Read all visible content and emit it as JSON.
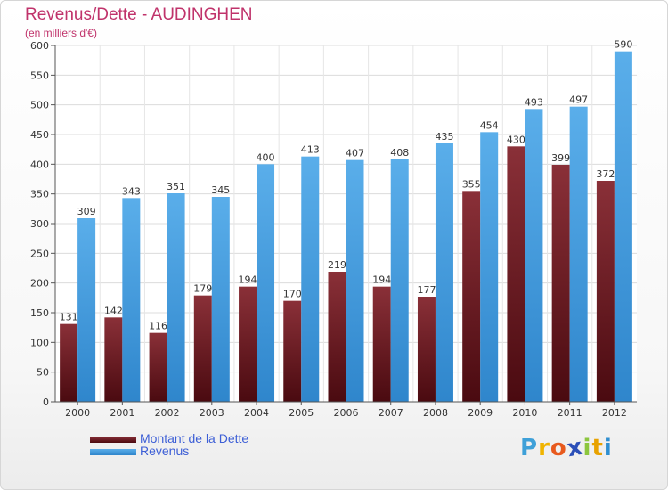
{
  "header": {
    "title": "Revenus/Dette - AUDINGHEN",
    "subtitle": "(en milliers d'€)"
  },
  "chart_data": {
    "type": "bar",
    "title": "Revenus/Dette - AUDINGHEN",
    "subtitle": "(en milliers d'€)",
    "xlabel": "",
    "ylabel": "",
    "ylim": [
      0,
      600
    ],
    "yticks": [
      0,
      50,
      100,
      150,
      200,
      250,
      300,
      350,
      400,
      450,
      500,
      550,
      600
    ],
    "grid": true,
    "legend_position": "bottom-left",
    "categories": [
      "2000",
      "2001",
      "2002",
      "2003",
      "2004",
      "2005",
      "2006",
      "2007",
      "2008",
      "2009",
      "2010",
      "2011",
      "2012"
    ],
    "series": [
      {
        "name": "Montant de la Dette",
        "color": "#7e2a30",
        "values": [
          131,
          142,
          116,
          179,
          194,
          170,
          219,
          194,
          177,
          355,
          430,
          399,
          372
        ]
      },
      {
        "name": "Revenus",
        "color": "#4da3e6",
        "values": [
          309,
          343,
          351,
          345,
          400,
          413,
          407,
          408,
          435,
          454,
          493,
          497,
          590
        ]
      }
    ]
  },
  "legend": {
    "items": [
      {
        "label": "Montant de la Dette",
        "color": "#7e2a30"
      },
      {
        "label": "Revenus",
        "color": "#4da3e6"
      }
    ]
  },
  "logo": {
    "letters": [
      "P",
      "r",
      "o",
      "x",
      "i",
      "t",
      "i"
    ],
    "colors": [
      "#3ea0d8",
      "#f0b400",
      "#e85a1e",
      "#2b4fb8",
      "#8cc63e",
      "#e8a200",
      "#2f8fd0"
    ]
  }
}
